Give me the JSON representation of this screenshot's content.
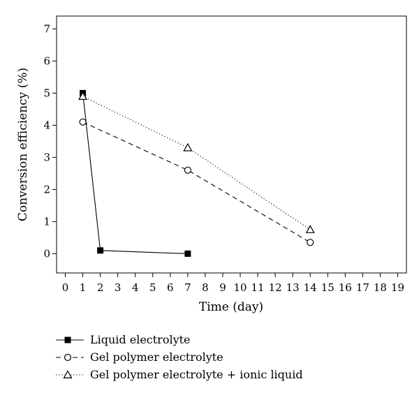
{
  "chart_data": {
    "type": "line",
    "xlabel": "Time (day)",
    "ylabel": "Conversion efficiency (%)",
    "xlim": [
      -0.5,
      19.5
    ],
    "ylim": [
      -0.6,
      7.4
    ],
    "xticks": [
      0,
      1,
      2,
      3,
      4,
      5,
      6,
      7,
      8,
      9,
      10,
      11,
      12,
      13,
      14,
      15,
      16,
      17,
      18,
      19
    ],
    "yticks": [
      0,
      1,
      2,
      3,
      4,
      5,
      6,
      7
    ],
    "grid": false,
    "legend_position": "bottom",
    "series": [
      {
        "name": "Liquid electrolyte",
        "marker": "filled-square",
        "line": "solid",
        "x": [
          1,
          2,
          7
        ],
        "y": [
          5.0,
          0.1,
          0.0
        ]
      },
      {
        "name": "Gel polymer electrolyte",
        "marker": "open-circle",
        "line": "dashed",
        "x": [
          1,
          7,
          14
        ],
        "y": [
          4.1,
          2.6,
          0.35
        ]
      },
      {
        "name": "Gel polymer electrolyte + ionic liquid",
        "marker": "open-triangle",
        "line": "dotted",
        "x": [
          1,
          7,
          14
        ],
        "y": [
          4.9,
          3.3,
          0.75
        ]
      }
    ]
  }
}
